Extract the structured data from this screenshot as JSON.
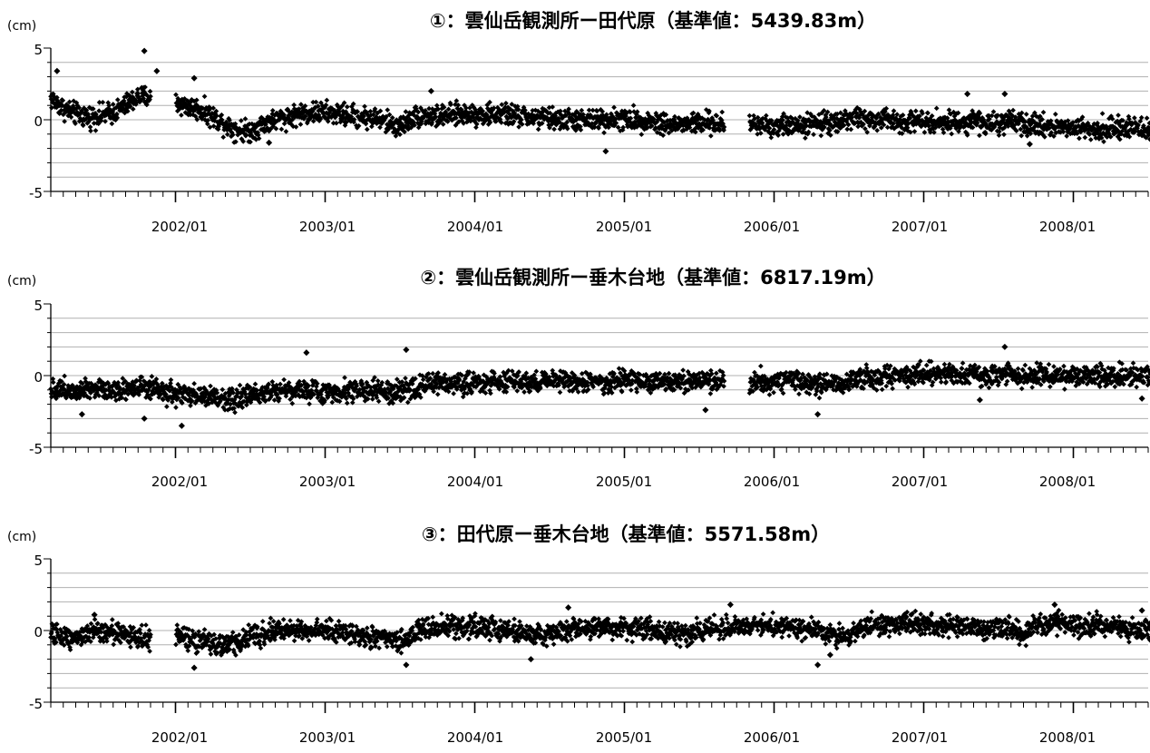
{
  "chart_data": [
    {
      "type": "scatter",
      "title": "①：雲仙岳観測所ー田代原（基準値：5439.83m）",
      "ylabel": "(cm)",
      "ylim": [
        -5,
        5
      ],
      "yticks": [
        "5",
        "0",
        "-5"
      ],
      "xlim": [
        "2001/03",
        "2008/07"
      ],
      "xtick_labels": [
        "2002/01",
        "2003/01",
        "2004/01",
        "2005/01",
        "2006/01",
        "2007/01",
        "2008/01"
      ],
      "grid": "horizontal, 1 cm",
      "marker_color": "#000000",
      "gaps": [
        [
          "2001/11",
          "2001/12"
        ],
        [
          "2005/09",
          "2005/10"
        ]
      ],
      "series": [
        {
          "x": [
            "2001/03",
            "2001/04",
            "2001/05",
            "2001/06",
            "2001/07",
            "2001/08",
            "2001/09",
            "2001/10",
            "2001/11",
            "2001/12",
            "2002/01",
            "2002/02",
            "2002/03",
            "2002/04",
            "2002/05",
            "2002/06",
            "2002/07",
            "2002/08",
            "2002/09",
            "2002/10",
            "2002/11",
            "2002/12",
            "2003/01",
            "2003/02",
            "2003/03",
            "2003/04",
            "2003/05",
            "2003/06",
            "2003/07",
            "2003/08",
            "2003/09",
            "2003/10",
            "2003/11",
            "2003/12",
            "2004/01",
            "2004/02",
            "2004/03",
            "2004/04",
            "2004/05",
            "2004/06",
            "2004/07",
            "2004/08",
            "2004/09",
            "2004/10",
            "2004/11",
            "2004/12",
            "2005/01",
            "2005/02",
            "2005/03",
            "2005/04",
            "2005/05",
            "2005/06",
            "2005/07",
            "2005/08",
            "2005/09",
            "2005/10",
            "2005/11",
            "2005/12",
            "2006/01",
            "2006/02",
            "2006/03",
            "2006/04",
            "2006/05",
            "2006/06",
            "2006/07",
            "2006/08",
            "2006/09",
            "2006/10",
            "2006/11",
            "2006/12",
            "2007/01",
            "2007/02",
            "2007/03",
            "2007/04",
            "2007/05",
            "2007/06",
            "2007/07",
            "2007/08",
            "2007/09",
            "2007/10",
            "2007/11",
            "2007/12",
            "2008/01",
            "2008/02",
            "2008/03",
            "2008/04",
            "2008/05",
            "2008/06",
            "2008/07"
          ],
          "y": [
            1.5,
            0.8,
            0.4,
            0.2,
            0.3,
            0.5,
            1.0,
            1.6,
            null,
            null,
            1.2,
            0.9,
            0.7,
            0.2,
            -0.3,
            -0.7,
            -0.8,
            -0.3,
            0.0,
            0.2,
            0.4,
            0.5,
            0.5,
            0.4,
            0.3,
            0.2,
            0.1,
            -0.2,
            -0.5,
            0.2,
            0.3,
            0.2,
            0.3,
            0.4,
            0.4,
            0.3,
            0.4,
            0.3,
            0.2,
            0.1,
            0.1,
            0.0,
            0.0,
            -0.1,
            0.0,
            0.1,
            0.0,
            0.0,
            -0.1,
            -0.2,
            -0.4,
            -0.3,
            -0.2,
            -0.3,
            null,
            null,
            -0.3,
            -0.3,
            -0.4,
            -0.4,
            -0.3,
            -0.3,
            -0.2,
            -0.1,
            0.1,
            0.0,
            -0.1,
            0.0,
            -0.1,
            -0.1,
            0.0,
            -0.1,
            -0.2,
            -0.2,
            0.0,
            -0.3,
            -0.3,
            -0.2,
            -0.4,
            -0.4,
            -0.4,
            -0.5,
            -0.5,
            -0.6,
            -0.6,
            -0.6,
            -0.6,
            -0.6,
            -0.7
          ],
          "outliers": [
            [
              "2001/03",
              3.4
            ],
            [
              "2001/10",
              4.8
            ],
            [
              "2001/11",
              3.4
            ],
            [
              "2002/02",
              2.9
            ],
            [
              "2003/09",
              2.0
            ],
            [
              "2004/11",
              -2.2
            ],
            [
              "2007/04",
              1.8
            ],
            [
              "2007/07",
              1.8
            ],
            [
              "2002/08",
              -1.6
            ],
            [
              "2007/09",
              -1.7
            ]
          ]
        }
      ]
    },
    {
      "type": "scatter",
      "title": "②：雲仙岳観測所ー垂木台地（基準値：6817.19m）",
      "ylabel": "(cm)",
      "ylim": [
        -5,
        5
      ],
      "yticks": [
        "5",
        "0",
        "-5"
      ],
      "xlim": [
        "2001/03",
        "2008/07"
      ],
      "xtick_labels": [
        "2002/01",
        "2003/01",
        "2004/01",
        "2005/01",
        "2006/01",
        "2007/01",
        "2008/01"
      ],
      "grid": "horizontal, 1 cm",
      "marker_color": "#000000",
      "gaps": [
        [
          "2005/09",
          "2005/10"
        ]
      ],
      "series": [
        {
          "x": [
            "2001/03",
            "2001/04",
            "2001/05",
            "2001/06",
            "2001/07",
            "2001/08",
            "2001/09",
            "2001/10",
            "2001/11",
            "2001/12",
            "2002/01",
            "2002/02",
            "2002/03",
            "2002/04",
            "2002/05",
            "2002/06",
            "2002/07",
            "2002/08",
            "2002/09",
            "2002/10",
            "2002/11",
            "2002/12",
            "2003/01",
            "2003/02",
            "2003/03",
            "2003/04",
            "2003/05",
            "2003/06",
            "2003/07",
            "2003/08",
            "2003/09",
            "2003/10",
            "2003/11",
            "2003/12",
            "2004/01",
            "2004/02",
            "2004/03",
            "2004/04",
            "2004/05",
            "2004/06",
            "2004/07",
            "2004/08",
            "2004/09",
            "2004/10",
            "2004/11",
            "2004/12",
            "2005/01",
            "2005/02",
            "2005/03",
            "2005/04",
            "2005/05",
            "2005/06",
            "2005/07",
            "2005/08",
            "2005/09",
            "2005/10",
            "2005/11",
            "2005/12",
            "2006/01",
            "2006/02",
            "2006/03",
            "2006/04",
            "2006/05",
            "2006/06",
            "2006/07",
            "2006/08",
            "2006/09",
            "2006/10",
            "2006/11",
            "2006/12",
            "2007/01",
            "2007/02",
            "2007/03",
            "2007/04",
            "2007/05",
            "2007/06",
            "2007/07",
            "2007/08",
            "2007/09",
            "2007/10",
            "2007/11",
            "2007/12",
            "2008/01",
            "2008/02",
            "2008/03",
            "2008/04",
            "2008/05",
            "2008/06",
            "2008/07"
          ],
          "y": [
            -0.9,
            -1.0,
            -1.0,
            -0.8,
            -0.9,
            -1.0,
            -0.9,
            -0.8,
            -1.0,
            -1.2,
            -1.3,
            -1.4,
            -1.4,
            -1.5,
            -1.6,
            -1.6,
            -1.4,
            -1.1,
            -1.0,
            -1.0,
            -1.0,
            -1.1,
            -1.2,
            -1.1,
            -1.0,
            -1.0,
            -1.1,
            -1.2,
            -1.2,
            -0.9,
            -0.7,
            -0.5,
            -0.5,
            -0.5,
            -0.5,
            -0.4,
            -0.4,
            -0.4,
            -0.5,
            -0.5,
            -0.3,
            -0.3,
            -0.4,
            -0.5,
            -0.5,
            -0.4,
            -0.4,
            -0.4,
            -0.4,
            -0.5,
            -0.5,
            -0.4,
            -0.4,
            -0.4,
            null,
            null,
            -0.4,
            -0.4,
            -0.4,
            -0.4,
            -0.5,
            -0.5,
            -0.5,
            -0.5,
            -0.5,
            -0.2,
            -0.1,
            -0.1,
            0.0,
            0.0,
            0.1,
            0.1,
            0.1,
            0.1,
            0.1,
            0.0,
            0.0,
            0.1,
            0.0,
            0.1,
            0.0,
            0.0,
            0.0,
            0.0,
            -0.1,
            -0.1,
            0.0,
            0.0,
            0.0
          ],
          "outliers": [
            [
              "2001/05",
              -2.7
            ],
            [
              "2001/10",
              -3.0
            ],
            [
              "2002/01",
              -3.5
            ],
            [
              "2002/11",
              1.6
            ],
            [
              "2003/07",
              1.8
            ],
            [
              "2006/04",
              -2.7
            ],
            [
              "2007/07",
              2.0
            ],
            [
              "2005/07",
              -2.4
            ],
            [
              "2007/05",
              -1.7
            ],
            [
              "2008/06",
              -1.6
            ]
          ]
        }
      ]
    },
    {
      "type": "scatter",
      "title": "③：田代原ー垂木台地（基準値：5571.58m）",
      "ylabel": "(cm)",
      "ylim": [
        -5,
        5
      ],
      "yticks": [
        "5",
        "0",
        "-5"
      ],
      "xlim": [
        "2001/03",
        "2008/07"
      ],
      "xtick_labels": [
        "2002/01",
        "2003/01",
        "2004/01",
        "2005/01",
        "2006/01",
        "2007/01",
        "2008/01"
      ],
      "grid": "horizontal, 1 cm",
      "marker_color": "#000000",
      "gaps": [
        [
          "2001/11",
          "2001/12"
        ]
      ],
      "series": [
        {
          "x": [
            "2001/03",
            "2001/04",
            "2001/05",
            "2001/06",
            "2001/07",
            "2001/08",
            "2001/09",
            "2001/10",
            "2001/11",
            "2001/12",
            "2002/01",
            "2002/02",
            "2002/03",
            "2002/04",
            "2002/05",
            "2002/06",
            "2002/07",
            "2002/08",
            "2002/09",
            "2002/10",
            "2002/11",
            "2002/12",
            "2003/01",
            "2003/02",
            "2003/03",
            "2003/04",
            "2003/05",
            "2003/06",
            "2003/07",
            "2003/08",
            "2003/09",
            "2003/10",
            "2003/11",
            "2003/12",
            "2004/01",
            "2004/02",
            "2004/03",
            "2004/04",
            "2004/05",
            "2004/06",
            "2004/07",
            "2004/08",
            "2004/09",
            "2004/10",
            "2004/11",
            "2004/12",
            "2005/01",
            "2005/02",
            "2005/03",
            "2005/04",
            "2005/05",
            "2005/06",
            "2005/07",
            "2005/08",
            "2005/09",
            "2005/10",
            "2005/11",
            "2005/12",
            "2006/01",
            "2006/02",
            "2006/03",
            "2006/04",
            "2006/05",
            "2006/06",
            "2006/07",
            "2006/08",
            "2006/09",
            "2006/10",
            "2006/11",
            "2006/12",
            "2007/01",
            "2007/02",
            "2007/03",
            "2007/04",
            "2007/05",
            "2007/06",
            "2007/07",
            "2007/08",
            "2007/09",
            "2007/10",
            "2007/11",
            "2007/12",
            "2008/01",
            "2008/02",
            "2008/03",
            "2008/04",
            "2008/05",
            "2008/06",
            "2008/07"
          ],
          "y": [
            -0.3,
            -0.4,
            -0.4,
            -0.3,
            0.0,
            -0.1,
            -0.3,
            -0.5,
            null,
            null,
            -0.4,
            -0.6,
            -0.8,
            -1.0,
            -1.0,
            -0.8,
            -0.5,
            -0.2,
            0.0,
            0.0,
            0.1,
            0.0,
            0.0,
            -0.1,
            -0.2,
            -0.4,
            -0.5,
            -0.6,
            -0.9,
            -0.2,
            0.1,
            0.2,
            0.3,
            0.3,
            0.3,
            0.2,
            0.1,
            0.0,
            -0.2,
            -0.3,
            -0.3,
            -0.1,
            0.1,
            0.2,
            0.3,
            0.2,
            0.2,
            0.1,
            0.0,
            -0.1,
            -0.2,
            -0.2,
            0.0,
            0.1,
            0.2,
            0.3,
            0.4,
            0.4,
            0.3,
            0.3,
            0.2,
            0.1,
            -0.1,
            -0.3,
            -0.5,
            0.2,
            0.3,
            0.4,
            0.4,
            0.4,
            0.4,
            0.4,
            0.3,
            0.3,
            0.2,
            0.2,
            0.3,
            0.0,
            -0.3,
            0.3,
            0.4,
            0.5,
            0.5,
            0.4,
            0.4,
            0.3,
            0.2,
            0.0,
            0.2
          ],
          "outliers": [
            [
              "2001/06",
              1.1
            ],
            [
              "2002/02",
              -2.6
            ],
            [
              "2003/07",
              -2.4
            ],
            [
              "2004/05",
              -2.0
            ],
            [
              "2004/08",
              1.6
            ],
            [
              "2005/09",
              1.8
            ],
            [
              "2006/04",
              -2.4
            ],
            [
              "2006/05",
              -1.7
            ],
            [
              "2007/11",
              1.8
            ],
            [
              "2008/06",
              1.4
            ]
          ]
        }
      ]
    }
  ]
}
